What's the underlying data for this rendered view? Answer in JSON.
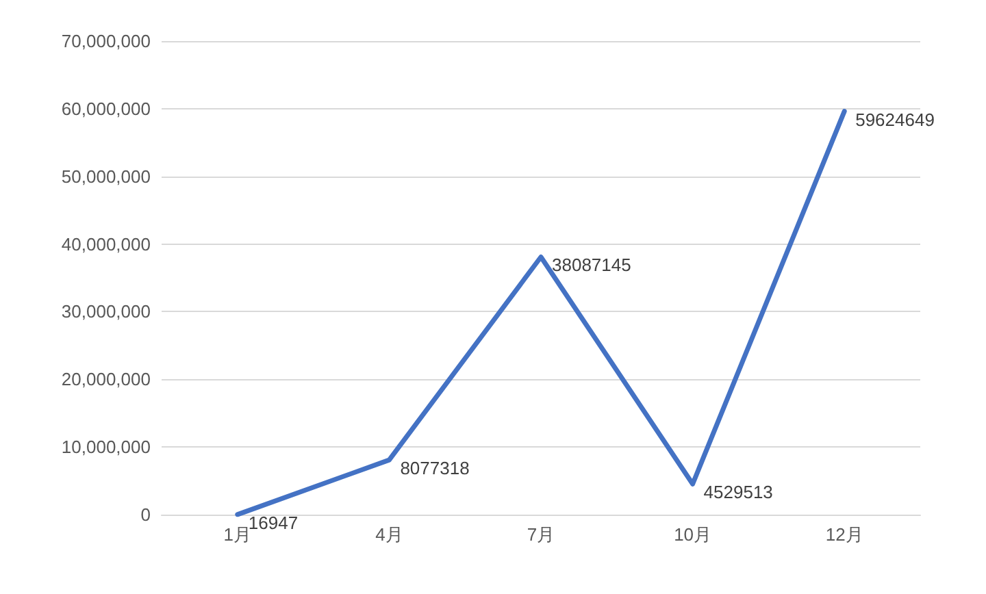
{
  "chart_data": {
    "type": "line",
    "categories": [
      "1月",
      "4月",
      "7月",
      "10月",
      "12月"
    ],
    "series": [
      {
        "color": "#4472c4",
        "values": [
          16947,
          8077318,
          38087145,
          4529513,
          59624649
        ]
      }
    ],
    "ylim": [
      0,
      70000000
    ],
    "yticks": [
      0,
      {
        "value": 10000000,
        "label": "10,000,000"
      },
      {
        "value": 20000000,
        "label": "20,000,000"
      },
      {
        "value": 30000000,
        "label": "30,000,000"
      },
      {
        "value": 40000000,
        "label": "40,000,000"
      },
      {
        "value": 50000000,
        "label": "50,000,000"
      },
      {
        "value": 60000000,
        "label": "60,000,000"
      },
      {
        "value": 70000000,
        "label": "70,000,000"
      }
    ],
    "grid": "y",
    "marker": "none",
    "line_style": "solid",
    "data_labels": true
  }
}
